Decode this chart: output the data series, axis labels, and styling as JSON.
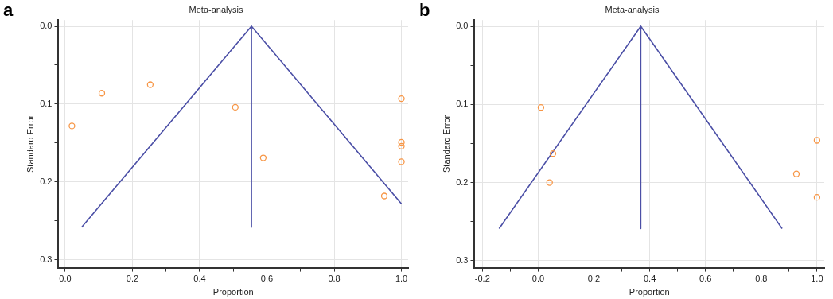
{
  "chart_data": [
    {
      "type": "scatter",
      "title": "Meta-analysis",
      "xlabel": "Proportion",
      "ylabel": "Standard Error",
      "annotations": [
        "a"
      ],
      "xlim": [
        -0.02,
        1.02
      ],
      "ylim": [
        0.31,
        -0.008
      ],
      "xticks": [
        {
          "value": 0,
          "label": "0.0"
        },
        {
          "value": 0.1,
          "label": null
        },
        {
          "value": 0.2,
          "label": "0.2"
        },
        {
          "value": 0.3,
          "label": null
        },
        {
          "value": 0.4,
          "label": "0.4"
        },
        {
          "value": 0.5,
          "label": null
        },
        {
          "value": 0.6,
          "label": "0.6"
        },
        {
          "value": 0.7,
          "label": null
        },
        {
          "value": 0.8,
          "label": "0.8"
        },
        {
          "value": 0.9,
          "label": null
        },
        {
          "value": 1,
          "label": "1.0"
        }
      ],
      "yticks": [
        {
          "value": 0,
          "label": "0.0"
        },
        {
          "value": 0.05,
          "label": null
        },
        {
          "value": 0.1,
          "label": "0.1"
        },
        {
          "value": 0.15,
          "label": null
        },
        {
          "value": 0.2,
          "label": "0.2"
        },
        {
          "value": 0.25,
          "label": null
        },
        {
          "value": 0.3,
          "label": "0.3"
        }
      ],
      "grid": true,
      "marker": "circle",
      "series": [
        {
          "type": "scatter",
          "color": "#f79646",
          "x": [
            0.02,
            0.109,
            0.253,
            0.506,
            0.589,
            1.0,
            1.0,
            1.0,
            1.0,
            0.949
          ],
          "values": [
            0.128,
            0.086,
            0.075,
            0.104,
            0.169,
            0.093,
            0.149,
            0.154,
            0.174,
            0.218
          ]
        },
        {
          "type": "line",
          "color": "#4b4fa6",
          "marker": "none",
          "x": [
            0.049,
            0.554,
            1.0
          ],
          "values": [
            0.258,
            0,
            0.228
          ]
        },
        {
          "type": "line",
          "color": "#4b4fa6",
          "marker": "none",
          "x": [
            0.554,
            0.554
          ],
          "values": [
            0,
            0.258
          ]
        }
      ]
    },
    {
      "type": "scatter",
      "title": "Meta-analysis",
      "xlabel": "Proportion",
      "ylabel": "Standard Error",
      "annotations": [
        "b"
      ],
      "xlim": [
        -0.228,
        1.026
      ],
      "ylim": [
        0.309,
        -0.008
      ],
      "xticks": [
        {
          "value": -0.2,
          "label": "-0.2"
        },
        {
          "value": -0.1,
          "label": null
        },
        {
          "value": 0,
          "label": "0.0"
        },
        {
          "value": 0.1,
          "label": null
        },
        {
          "value": 0.2,
          "label": "0.2"
        },
        {
          "value": 0.3,
          "label": null
        },
        {
          "value": 0.4,
          "label": "0.4"
        },
        {
          "value": 0.5,
          "label": null
        },
        {
          "value": 0.6,
          "label": "0.6"
        },
        {
          "value": 0.7,
          "label": null
        },
        {
          "value": 0.8,
          "label": "0.8"
        },
        {
          "value": 0.9,
          "label": null
        },
        {
          "value": 1,
          "label": "1.0"
        }
      ],
      "yticks": [
        {
          "value": 0,
          "label": "0.0"
        },
        {
          "value": 0.05,
          "label": null
        },
        {
          "value": 0.1,
          "label": "0.1"
        },
        {
          "value": 0.15,
          "label": null
        },
        {
          "value": 0.2,
          "label": "0.2"
        },
        {
          "value": 0.25,
          "label": null
        },
        {
          "value": 0.3,
          "label": "0.3"
        }
      ],
      "grid": true,
      "marker": "circle",
      "series": [
        {
          "type": "scatter",
          "color": "#f79646",
          "x": [
            0.01,
            0.053,
            0.041,
            1.0,
            0.926,
            1.0
          ],
          "values": [
            0.104,
            0.163,
            0.2,
            0.146,
            0.189,
            0.219
          ]
        },
        {
          "type": "line",
          "color": "#4b4fa6",
          "marker": "none",
          "x": [
            -0.14,
            0.368,
            0.875
          ],
          "values": [
            0.259,
            0,
            0.259
          ]
        },
        {
          "type": "line",
          "color": "#4b4fa6",
          "marker": "none",
          "x": [
            0.368,
            0.368
          ],
          "values": [
            0,
            0.259
          ]
        }
      ]
    }
  ]
}
